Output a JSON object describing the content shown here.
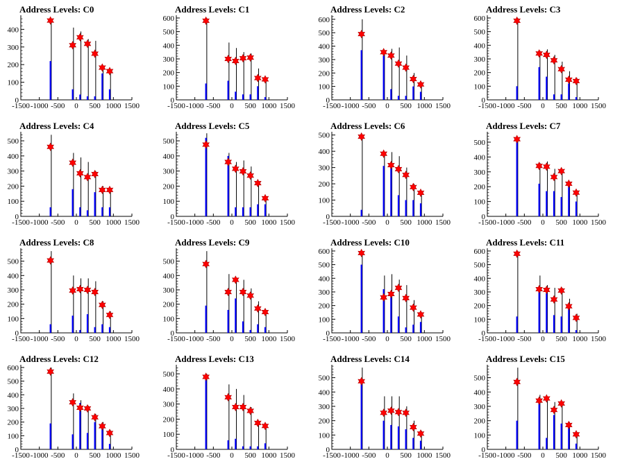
{
  "colors": {
    "histogram": "#0000ff",
    "bars": "#000000",
    "marker": "#ff0000",
    "marker_stroke": "#b00000"
  },
  "chart_data": [
    {
      "type": "histogram",
      "title": "Address Levels: C0",
      "xlim": [
        -1500,
        1500
      ],
      "ylim": [
        0,
        480
      ],
      "yticks": [
        0,
        100,
        200,
        300,
        400
      ],
      "xticks": [
        -1500,
        -1000,
        -500,
        0,
        500,
        1000,
        1500
      ],
      "peaks": [
        {
          "x": -700,
          "count": 450
        },
        {
          "x": -100,
          "count": 310
        },
        {
          "x": 100,
          "count": 355
        },
        {
          "x": 300,
          "count": 318
        },
        {
          "x": 500,
          "count": 262
        },
        {
          "x": 700,
          "count": 183
        },
        {
          "x": 900,
          "count": 163
        }
      ],
      "bar_tops": [
        450,
        410,
        388,
        345,
        335,
        195,
        170
      ],
      "blue_heights": [
        220,
        60,
        30,
        20,
        20,
        150,
        60
      ]
    },
    {
      "type": "histogram",
      "title": "Address Levels: C1",
      "xlim": [
        -1500,
        1500
      ],
      "ylim": [
        0,
        620
      ],
      "yticks": [
        0,
        100,
        200,
        300,
        400,
        500,
        600
      ],
      "xticks": [
        -1500,
        -1000,
        -500,
        0,
        500,
        1000,
        1500
      ],
      "peaks": [
        {
          "x": -700,
          "count": 580
        },
        {
          "x": -100,
          "count": 300
        },
        {
          "x": 100,
          "count": 285
        },
        {
          "x": 300,
          "count": 305
        },
        {
          "x": 500,
          "count": 310
        },
        {
          "x": 700,
          "count": 160
        },
        {
          "x": 900,
          "count": 150
        }
      ],
      "bar_tops": [
        600,
        420,
        380,
        350,
        340,
        230,
        160
      ],
      "blue_heights": [
        120,
        140,
        60,
        40,
        40,
        100,
        20
      ]
    },
    {
      "type": "histogram",
      "title": "Address Levels: C2",
      "xlim": [
        -1500,
        1500
      ],
      "ylim": [
        0,
        630
      ],
      "yticks": [
        0,
        100,
        200,
        300,
        400,
        500,
        600
      ],
      "xticks": [
        -1500,
        -1000,
        -500,
        0,
        500,
        1000,
        1500
      ],
      "peaks": [
        {
          "x": -700,
          "count": 490
        },
        {
          "x": -100,
          "count": 355
        },
        {
          "x": 100,
          "count": 330
        },
        {
          "x": 300,
          "count": 270
        },
        {
          "x": 500,
          "count": 240
        },
        {
          "x": 700,
          "count": 155
        },
        {
          "x": 900,
          "count": 115
        }
      ],
      "bar_tops": [
        600,
        360,
        380,
        390,
        330,
        200,
        130
      ],
      "blue_heights": [
        370,
        330,
        80,
        30,
        30,
        100,
        60
      ]
    },
    {
      "type": "histogram",
      "title": "Address Levels: C3",
      "xlim": [
        -1500,
        1500
      ],
      "ylim": [
        0,
        620
      ],
      "yticks": [
        0,
        100,
        200,
        300,
        400,
        500,
        600
      ],
      "xticks": [
        -1500,
        -1000,
        -500,
        0,
        500,
        1000,
        1500
      ],
      "peaks": [
        {
          "x": -700,
          "count": 580
        },
        {
          "x": -100,
          "count": 340
        },
        {
          "x": 100,
          "count": 330
        },
        {
          "x": 300,
          "count": 290
        },
        {
          "x": 500,
          "count": 225
        },
        {
          "x": 700,
          "count": 148
        },
        {
          "x": 900,
          "count": 138
        }
      ],
      "bar_tops": [
        600,
        360,
        370,
        330,
        280,
        210,
        160
      ],
      "blue_heights": [
        100,
        240,
        170,
        40,
        40,
        120,
        20
      ]
    },
    {
      "type": "histogram",
      "title": "Address Levels: C4",
      "xlim": [
        -1500,
        1500
      ],
      "ylim": [
        0,
        560
      ],
      "yticks": [
        0,
        100,
        200,
        300,
        400,
        500
      ],
      "xticks": [
        -1500,
        -1000,
        -500,
        0,
        500,
        1000,
        1500
      ],
      "peaks": [
        {
          "x": -700,
          "count": 460
        },
        {
          "x": -100,
          "count": 355
        },
        {
          "x": 100,
          "count": 285
        },
        {
          "x": 300,
          "count": 260
        },
        {
          "x": 500,
          "count": 280
        },
        {
          "x": 700,
          "count": 175
        },
        {
          "x": 900,
          "count": 175
        }
      ],
      "bar_tops": [
        540,
        420,
        390,
        360,
        300,
        200,
        190
      ],
      "blue_heights": [
        60,
        180,
        60,
        40,
        160,
        60,
        60
      ]
    },
    {
      "type": "histogram",
      "title": "Address Levels: C5",
      "xlim": [
        -1500,
        1500
      ],
      "ylim": [
        0,
        560
      ],
      "yticks": [
        0,
        100,
        200,
        300,
        400,
        500
      ],
      "xticks": [
        -1500,
        -1000,
        -500,
        0,
        500,
        1000,
        1500
      ],
      "peaks": [
        {
          "x": -700,
          "count": 475
        },
        {
          "x": -100,
          "count": 360
        },
        {
          "x": 100,
          "count": 315
        },
        {
          "x": 300,
          "count": 298
        },
        {
          "x": 500,
          "count": 270
        },
        {
          "x": 700,
          "count": 220
        },
        {
          "x": 900,
          "count": 120
        }
      ],
      "bar_tops": [
        550,
        420,
        360,
        370,
        330,
        220,
        130
      ],
      "blue_heights": [
        520,
        400,
        60,
        60,
        60,
        80,
        80
      ]
    },
    {
      "type": "histogram",
      "title": "Address Levels: C6",
      "xlim": [
        -1500,
        1500
      ],
      "ylim": [
        0,
        520
      ],
      "yticks": [
        0,
        100,
        200,
        300,
        400,
        500
      ],
      "xticks": [
        -1500,
        -1000,
        -500,
        0,
        500,
        1000,
        1500
      ],
      "peaks": [
        {
          "x": -700,
          "count": 490
        },
        {
          "x": -100,
          "count": 385
        },
        {
          "x": 100,
          "count": 315
        },
        {
          "x": 300,
          "count": 290
        },
        {
          "x": 500,
          "count": 255
        },
        {
          "x": 700,
          "count": 180
        },
        {
          "x": 900,
          "count": 145
        }
      ],
      "bar_tops": [
        500,
        395,
        395,
        370,
        300,
        200,
        150
      ],
      "blue_heights": [
        40,
        310,
        300,
        130,
        100,
        100,
        80
      ]
    },
    {
      "type": "histogram",
      "title": "Address Levels: C7",
      "xlim": [
        -1500,
        1500
      ],
      "ylim": [
        0,
        570
      ],
      "yticks": [
        0,
        100,
        200,
        300,
        400,
        500
      ],
      "xticks": [
        -1500,
        -1000,
        -500,
        0,
        500,
        1000,
        1500
      ],
      "peaks": [
        {
          "x": -700,
          "count": 520
        },
        {
          "x": -100,
          "count": 340
        },
        {
          "x": 100,
          "count": 335
        },
        {
          "x": 300,
          "count": 265
        },
        {
          "x": 500,
          "count": 305
        },
        {
          "x": 700,
          "count": 220
        },
        {
          "x": 900,
          "count": 160
        }
      ],
      "bar_tops": [
        520,
        360,
        370,
        320,
        310,
        230,
        170
      ],
      "blue_heights": [
        500,
        220,
        170,
        170,
        130,
        210,
        100
      ]
    },
    {
      "type": "histogram",
      "title": "Address Levels: C8",
      "xlim": [
        -1500,
        1500
      ],
      "ylim": [
        0,
        590
      ],
      "yticks": [
        0,
        100,
        200,
        300,
        400,
        500
      ],
      "xticks": [
        -1500,
        -1000,
        -500,
        0,
        500,
        1000,
        1500
      ],
      "peaks": [
        {
          "x": -700,
          "count": 505
        },
        {
          "x": -100,
          "count": 295
        },
        {
          "x": 100,
          "count": 305
        },
        {
          "x": 300,
          "count": 300
        },
        {
          "x": 500,
          "count": 285
        },
        {
          "x": 700,
          "count": 195
        },
        {
          "x": 900,
          "count": 125
        }
      ],
      "bar_tops": [
        570,
        400,
        380,
        380,
        360,
        220,
        150
      ],
      "blue_heights": [
        60,
        120,
        20,
        130,
        40,
        60,
        40
      ]
    },
    {
      "type": "histogram",
      "title": "Address Levels: C9",
      "xlim": [
        -1500,
        1500
      ],
      "ylim": [
        0,
        590
      ],
      "yticks": [
        0,
        100,
        200,
        300,
        400,
        500
      ],
      "xticks": [
        -1500,
        -1000,
        -500,
        0,
        500,
        1000,
        1500
      ],
      "peaks": [
        {
          "x": -700,
          "count": 480
        },
        {
          "x": -100,
          "count": 285
        },
        {
          "x": 100,
          "count": 370
        },
        {
          "x": 300,
          "count": 285
        },
        {
          "x": 500,
          "count": 260
        },
        {
          "x": 700,
          "count": 170
        },
        {
          "x": 900,
          "count": 145
        }
      ],
      "bar_tops": [
        570,
        410,
        380,
        370,
        310,
        220,
        150
      ],
      "blue_heights": [
        190,
        160,
        240,
        80,
        20,
        60,
        40
      ]
    },
    {
      "type": "histogram",
      "title": "Address Levels: C10",
      "xlim": [
        -1500,
        1500
      ],
      "ylim": [
        0,
        620
      ],
      "yticks": [
        0,
        100,
        200,
        300,
        400,
        500,
        600
      ],
      "xticks": [
        -1500,
        -1000,
        -500,
        0,
        500,
        1000,
        1500
      ],
      "peaks": [
        {
          "x": -700,
          "count": 585
        },
        {
          "x": -100,
          "count": 260
        },
        {
          "x": 100,
          "count": 285
        },
        {
          "x": 300,
          "count": 330
        },
        {
          "x": 500,
          "count": 255
        },
        {
          "x": 700,
          "count": 185
        },
        {
          "x": 900,
          "count": 135
        }
      ],
      "bar_tops": [
        600,
        420,
        430,
        390,
        350,
        240,
        150
      ],
      "blue_heights": [
        500,
        320,
        280,
        120,
        40,
        60,
        80
      ]
    },
    {
      "type": "histogram",
      "title": "Address Levels: C11",
      "xlim": [
        -1500,
        1500
      ],
      "ylim": [
        0,
        620
      ],
      "yticks": [
        0,
        100,
        200,
        300,
        400,
        500,
        600
      ],
      "xticks": [
        -1500,
        -1000,
        -500,
        0,
        500,
        1000,
        1500
      ],
      "peaks": [
        {
          "x": -700,
          "count": 580
        },
        {
          "x": -100,
          "count": 320
        },
        {
          "x": 100,
          "count": 315
        },
        {
          "x": 300,
          "count": 245
        },
        {
          "x": 500,
          "count": 310
        },
        {
          "x": 700,
          "count": 195
        },
        {
          "x": 900,
          "count": 110
        }
      ],
      "bar_tops": [
        600,
        420,
        350,
        330,
        330,
        250,
        140
      ],
      "blue_heights": [
        120,
        310,
        290,
        130,
        120,
        190,
        20
      ]
    },
    {
      "type": "histogram",
      "title": "Address Levels: C12",
      "xlim": [
        -1500,
        1500
      ],
      "ylim": [
        0,
        620
      ],
      "yticks": [
        0,
        100,
        200,
        300,
        400,
        500,
        600
      ],
      "xticks": [
        -1500,
        -1000,
        -500,
        0,
        500,
        1000,
        1500
      ],
      "peaks": [
        {
          "x": -700,
          "count": 570
        },
        {
          "x": -100,
          "count": 345
        },
        {
          "x": 100,
          "count": 305
        },
        {
          "x": 300,
          "count": 300
        },
        {
          "x": 500,
          "count": 235
        },
        {
          "x": 700,
          "count": 170
        },
        {
          "x": 900,
          "count": 120
        }
      ],
      "bar_tops": [
        600,
        410,
        360,
        320,
        260,
        200,
        140
      ],
      "blue_heights": [
        190,
        110,
        340,
        120,
        200,
        150,
        40
      ]
    },
    {
      "type": "histogram",
      "title": "Address Levels: C13",
      "xlim": [
        -1500,
        1500
      ],
      "ylim": [
        0,
        560
      ],
      "yticks": [
        0,
        100,
        200,
        300,
        400,
        500
      ],
      "xticks": [
        -1500,
        -1000,
        -500,
        0,
        500,
        1000,
        1500
      ],
      "peaks": [
        {
          "x": -700,
          "count": 480
        },
        {
          "x": -100,
          "count": 345
        },
        {
          "x": 100,
          "count": 280
        },
        {
          "x": 300,
          "count": 280
        },
        {
          "x": 500,
          "count": 255
        },
        {
          "x": 700,
          "count": 175
        },
        {
          "x": 900,
          "count": 155
        }
      ],
      "bar_tops": [
        500,
        430,
        400,
        360,
        280,
        190,
        170
      ],
      "blue_heights": [
        460,
        60,
        70,
        20,
        20,
        20,
        40
      ]
    },
    {
      "type": "histogram",
      "title": "Address Levels: C14",
      "xlim": [
        -1500,
        1500
      ],
      "ylim": [
        0,
        590
      ],
      "yticks": [
        0,
        100,
        200,
        300,
        400,
        500
      ],
      "xticks": [
        -1500,
        -1000,
        -500,
        0,
        500,
        1000,
        1500
      ],
      "peaks": [
        {
          "x": -700,
          "count": 475
        },
        {
          "x": -100,
          "count": 255
        },
        {
          "x": 100,
          "count": 270
        },
        {
          "x": 300,
          "count": 260
        },
        {
          "x": 500,
          "count": 255
        },
        {
          "x": 700,
          "count": 155
        },
        {
          "x": 900,
          "count": 110
        }
      ],
      "bar_tops": [
        570,
        370,
        370,
        370,
        300,
        200,
        130
      ],
      "blue_heights": [
        460,
        200,
        170,
        160,
        140,
        80,
        60
      ]
    },
    {
      "type": "histogram",
      "title": "Address Levels: C15",
      "xlim": [
        -1500,
        1500
      ],
      "ylim": [
        0,
        590
      ],
      "yticks": [
        0,
        100,
        200,
        300,
        400,
        500
      ],
      "xticks": [
        -1500,
        -1000,
        -500,
        0,
        500,
        1000,
        1500
      ],
      "peaks": [
        {
          "x": -700,
          "count": 470
        },
        {
          "x": -100,
          "count": 340
        },
        {
          "x": 100,
          "count": 355
        },
        {
          "x": 300,
          "count": 275
        },
        {
          "x": 500,
          "count": 320
        },
        {
          "x": 700,
          "count": 170
        },
        {
          "x": 900,
          "count": 105
        }
      ],
      "bar_tops": [
        570,
        380,
        350,
        330,
        310,
        190,
        120
      ],
      "blue_heights": [
        200,
        340,
        80,
        240,
        180,
        180,
        40
      ]
    }
  ]
}
